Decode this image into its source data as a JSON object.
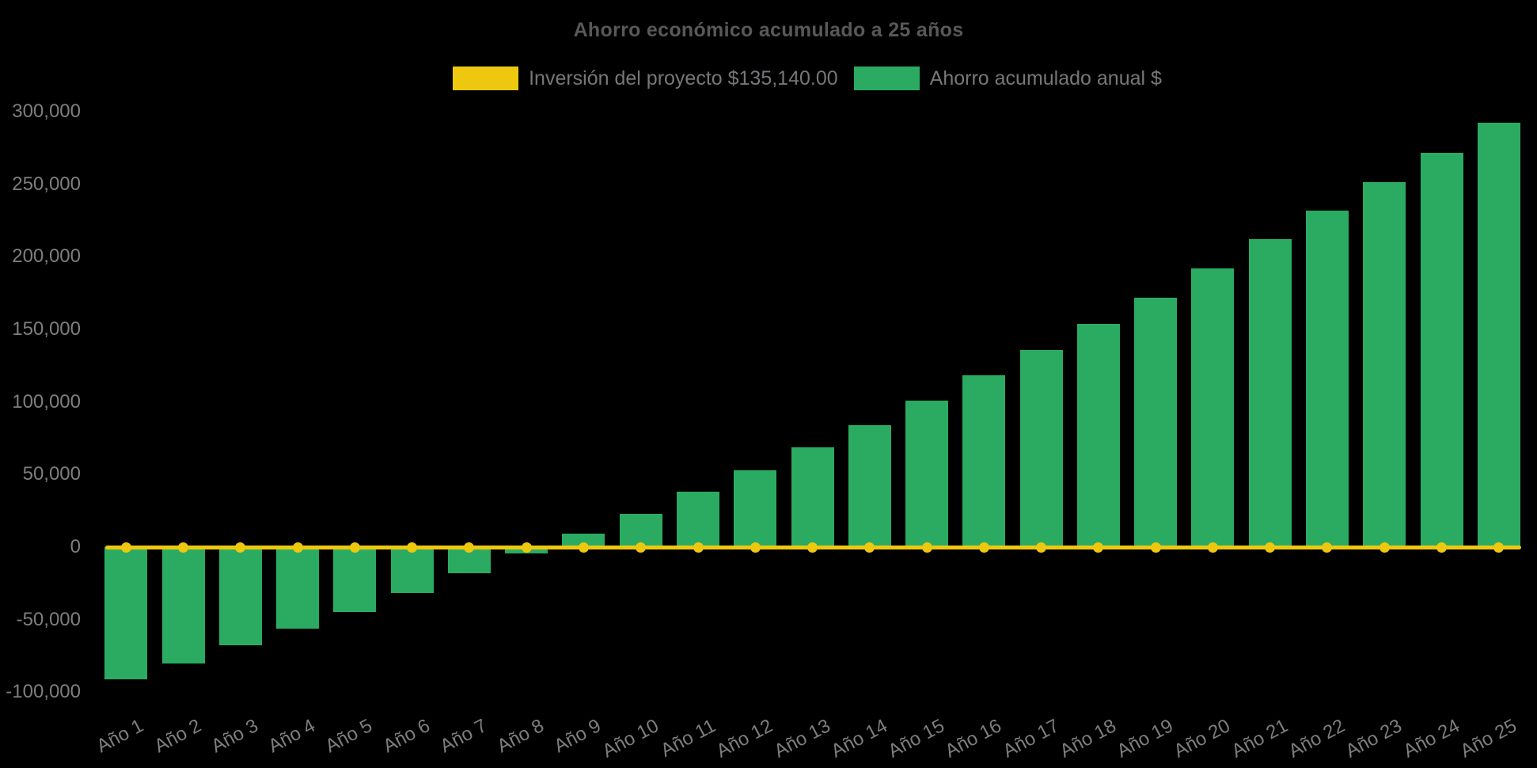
{
  "chart_data": {
    "type": "bar",
    "title": "Ahorro económico acumulado a 25 años",
    "categories": [
      "Año 1",
      "Año 2",
      "Año 3",
      "Año 4",
      "Año 5",
      "Año 6",
      "Año 7",
      "Año 8",
      "Año 9",
      "Año 10",
      "Año 11",
      "Año 12",
      "Año 13",
      "Año 14",
      "Año 15",
      "Año 16",
      "Año 17",
      "Año 18",
      "Año 19",
      "Año 20",
      "Año 21",
      "Año 22",
      "Año 23",
      "Año 24",
      "Año 25"
    ],
    "series": [
      {
        "name": "Inversión del proyecto $135,140.00",
        "type": "line",
        "color": "#eec80f",
        "constant_value": 0,
        "points_per_category": true
      },
      {
        "name": "Ahorro acumulado anual $",
        "type": "bar",
        "color": "#2bab61",
        "values": [
          -91000,
          -80000,
          -67500,
          -56000,
          -44500,
          -31500,
          -18000,
          -4500,
          9500,
          23000,
          38000,
          53000,
          68500,
          84000,
          101000,
          118500,
          136000,
          153500,
          172000,
          192000,
          212000,
          231500,
          251500,
          271500,
          292000
        ]
      }
    ],
    "y_axis": {
      "min": -100000,
      "max": 300000,
      "tick_step": 50000,
      "tick_labels": [
        "300,000",
        "250,000",
        "200,000",
        "150,000",
        "100,000",
        "50,000",
        "0",
        "-50,000",
        "-100,000"
      ]
    },
    "x_axis": {
      "tick_rotation_deg": -28
    },
    "legend_position": "top",
    "grid": false,
    "background_color": "#000000",
    "text_colors": {
      "title": "#58585a",
      "legend": "#76777a",
      "axis_ticks": "#7e7e7e"
    }
  }
}
